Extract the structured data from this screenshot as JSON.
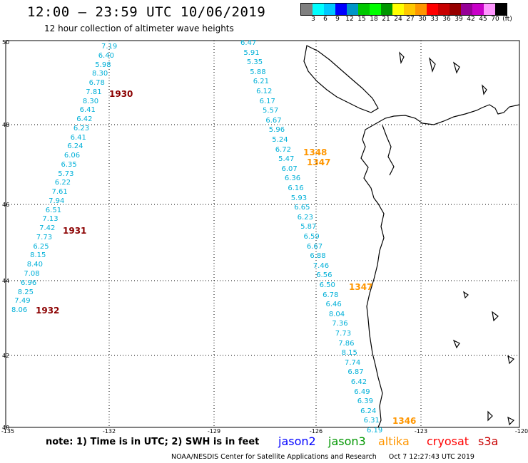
{
  "header": {
    "title": "12:00 – 23:59 UTC 10/06/2019",
    "subtitle": "12 hour collection of altimeter wave heights"
  },
  "colorbar": {
    "colors": [
      "#7f7f7f",
      "#00ffff",
      "#00c8ff",
      "#0000ff",
      "#0096c8",
      "#00c800",
      "#00ff00",
      "#009600",
      "#ffff00",
      "#ffc800",
      "#ff9600",
      "#ff0000",
      "#c80000",
      "#960000",
      "#960096",
      "#c800c8",
      "#ff96ff",
      "#000000"
    ],
    "labels": [
      "3",
      "6",
      "9",
      "12",
      "15",
      "18",
      "21",
      "24",
      "27",
      "30",
      "33",
      "36",
      "39",
      "42",
      "45",
      "70",
      "(ft)"
    ]
  },
  "axes": {
    "lat_labels": [
      "50",
      "48",
      "46",
      "44",
      "42",
      "40"
    ],
    "lon_labels": [
      "-135",
      "-132",
      "-129",
      "-126",
      "-123",
      "-120"
    ]
  },
  "tracks": {
    "west": [
      "7.19",
      "6.40",
      "5.98",
      "8.30",
      "6.78",
      "7.81",
      "8.30",
      "6.41",
      "6.42",
      "6.23",
      "6.41",
      "6.24",
      "6.06",
      "6.35",
      "5.73",
      "6.22",
      "7.61",
      "7.94",
      "6.51",
      "7.13",
      "7.42",
      "7.73",
      "6.25",
      "8.15",
      "8.40",
      "7.08",
      "6.96",
      "8.25",
      "7.49",
      "8.06"
    ],
    "east": [
      "6.47",
      "5.91",
      "5.35",
      "5.88",
      "6.21",
      "6.12",
      "6.17",
      "5.57",
      "6.67",
      "5.96",
      "5.24",
      "6.72",
      "5.47",
      "6.07",
      "6.36",
      "6.16",
      "5.93",
      "6.65",
      "6.23",
      "5.87",
      "6.59",
      "6.67",
      "6.88",
      "7.46",
      "6.56",
      "6.50",
      "6.78",
      "6.46",
      "8.04",
      "7.36",
      "7.73",
      "7.86",
      "8.15",
      "7.74",
      "6.87",
      "6.42",
      "6.49",
      "6.39",
      "6.24",
      "6.31",
      "6.19"
    ]
  },
  "pass_times": {
    "jason3_west": [
      "1930",
      "1931",
      "1932"
    ],
    "altika_east": [
      "1348",
      "1347",
      "1347",
      "1346"
    ]
  },
  "colors": {
    "track_point": "#00b0d8",
    "jason3_time": "#8b0000",
    "altika_time": "#ff9600"
  },
  "footer": {
    "note": "note:  1) Time is in UTC;  2) SWH is in feet",
    "satellites": [
      {
        "name": "jason2",
        "color": "#0000ff"
      },
      {
        "name": "jason3",
        "color": "#009600"
      },
      {
        "name": "altika",
        "color": "#ff9600"
      },
      {
        "name": "cryosat",
        "color": "#ff0000"
      },
      {
        "name": "s3a",
        "color": "#c80000"
      }
    ],
    "credit": "NOAA/NESDIS Center for Satellite Applications and Research",
    "timestamp": "Oct  7 12:27:43 UTC 2019"
  }
}
